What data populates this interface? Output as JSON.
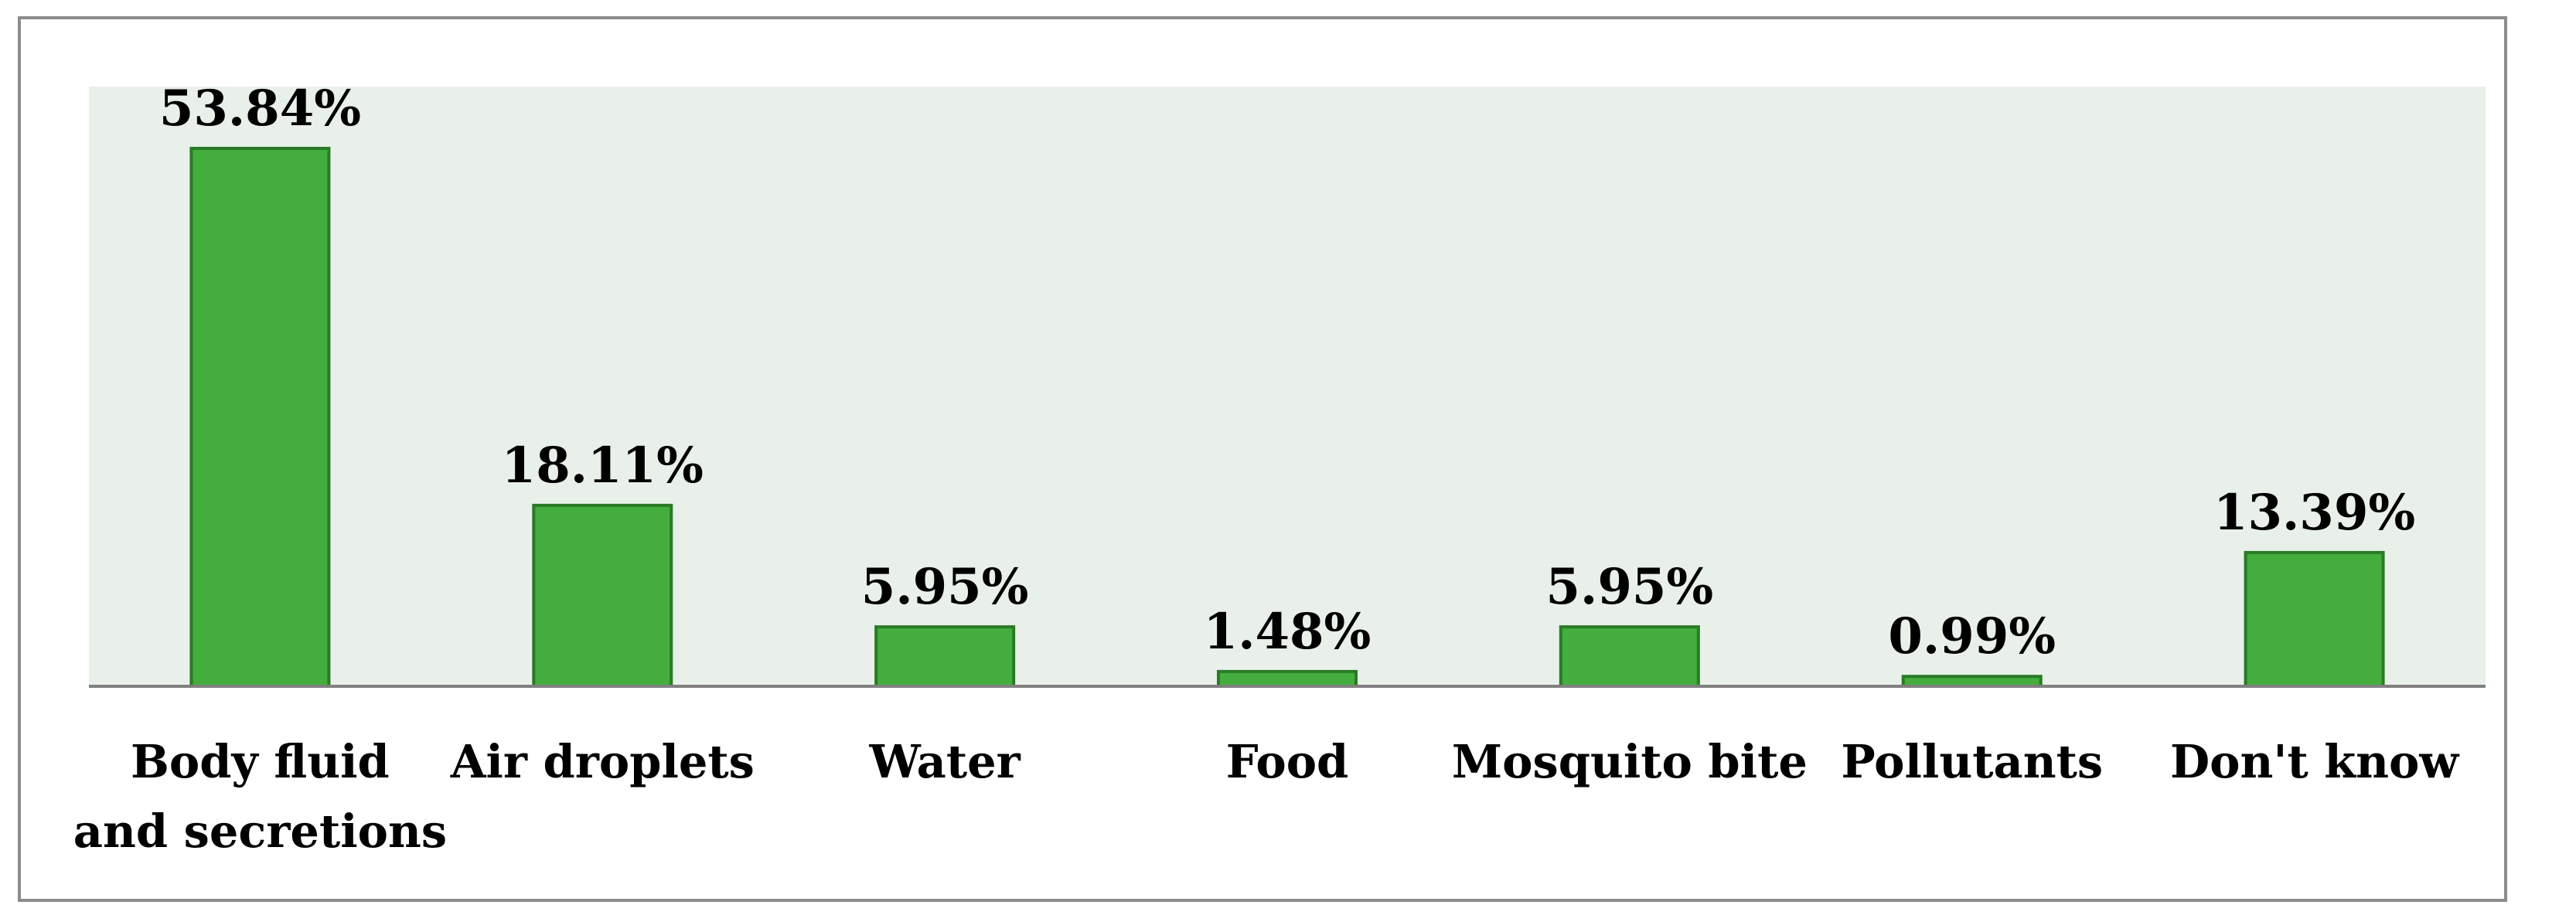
{
  "chart_data": {
    "type": "bar",
    "categories": [
      [
        "Body fluid",
        "and secretions"
      ],
      [
        "Air droplets"
      ],
      [
        "Water"
      ],
      [
        "Food"
      ],
      [
        "Mosquito bite"
      ],
      [
        "Pollutants"
      ],
      [
        "Don't know"
      ]
    ],
    "values": [
      53.84,
      18.11,
      5.95,
      1.48,
      5.95,
      0.99,
      13.39
    ],
    "value_labels": [
      "53.84%",
      "18.11%",
      "5.95%",
      "1.48%",
      "5.95%",
      "0.99%",
      "13.39%"
    ],
    "unit": "%",
    "ylim": [
      0,
      60
    ],
    "grid": false,
    "legend": "none",
    "colors": {
      "bar_fill": "#43ad3d",
      "bar_stroke": "#2a7a26",
      "plot_background": "#e8f0e9",
      "axis": "#808080",
      "frame": "#8c8c8c"
    }
  }
}
